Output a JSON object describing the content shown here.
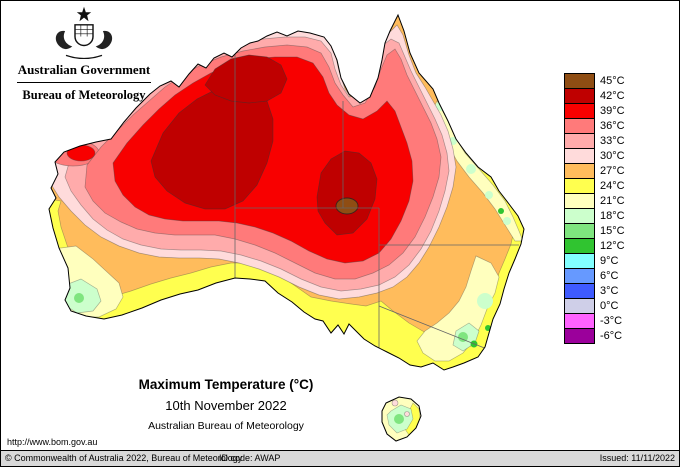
{
  "header": {
    "government": "Australian Government",
    "bureau": "Bureau of Meteorology"
  },
  "titles": {
    "main": "Maximum Temperature (°C)",
    "date": "10th November 2022",
    "org": "Australian Bureau of Meteorology"
  },
  "url": "http://www.bom.gov.au",
  "footer": {
    "copyright": "© Commonwealth of Australia 2022, Bureau of Meteorology",
    "id_code": "ID code: AWAP",
    "issued": "Issued: 11/11/2022"
  },
  "legend": {
    "items": [
      {
        "value": "45",
        "label": "45°C",
        "color": "#8f4d13"
      },
      {
        "value": "42",
        "label": "42°C",
        "color": "#bf0000"
      },
      {
        "value": "39",
        "label": "39°C",
        "color": "#f80000"
      },
      {
        "value": "36",
        "label": "36°C",
        "color": "#ff7a7a"
      },
      {
        "value": "33",
        "label": "33°C",
        "color": "#ffabab"
      },
      {
        "value": "30",
        "label": "30°C",
        "color": "#ffdbdb"
      },
      {
        "value": "27",
        "label": "27°C",
        "color": "#ffbc5c"
      },
      {
        "value": "24",
        "label": "24°C",
        "color": "#ffff4f"
      },
      {
        "value": "21",
        "label": "21°C",
        "color": "#ffffbe"
      },
      {
        "value": "18",
        "label": "18°C",
        "color": "#ccffcc"
      },
      {
        "value": "15",
        "label": "15°C",
        "color": "#7fe57f"
      },
      {
        "value": "12",
        "label": "12°C",
        "color": "#30c430"
      },
      {
        "value": "9",
        "label": "9°C",
        "color": "#82ffff"
      },
      {
        "value": "6",
        "label": "6°C",
        "color": "#6699ff"
      },
      {
        "value": "3",
        "label": "3°C",
        "color": "#3f5bff"
      },
      {
        "value": "0",
        "label": "0°C",
        "color": "#cfcfe8"
      },
      {
        "value": "-3",
        "label": "-3°C",
        "color": "#ff63ff"
      },
      {
        "value": "-6",
        "label": "-6°C",
        "color": "#9b009b"
      }
    ]
  }
}
